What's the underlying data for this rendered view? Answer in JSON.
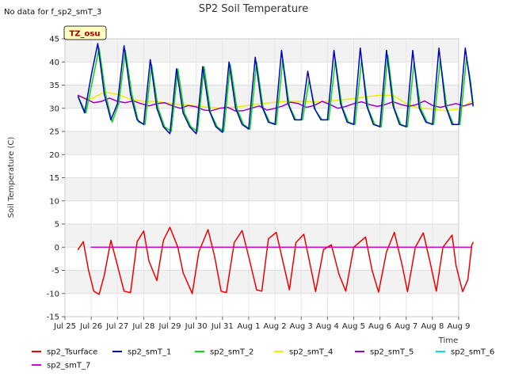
{
  "chart_data": {
    "type": "line",
    "title": "SP2 Soil Temperature",
    "ylabel": "Soil Temperature (C)",
    "xlabel": "Time",
    "ylim": [
      -15,
      45
    ],
    "yticks": [
      -15,
      -10,
      -5,
      0,
      5,
      10,
      15,
      20,
      25,
      30,
      35,
      40,
      45
    ],
    "xlim": [
      0,
      15
    ],
    "xtick_labels": [
      "Jul 25",
      "Jul 26",
      "Jul 27",
      "Jul 28",
      "Jul 29",
      "Jul 30",
      "Jul 31",
      "Aug 1",
      "Aug 2",
      "Aug 3",
      "Aug 4",
      "Aug 5",
      "Aug 6",
      "Aug 7",
      "Aug 8",
      "Aug 9"
    ],
    "grid": "horizontal bands",
    "legend_placement": "bottom",
    "series": [
      {
        "name": "sp2_Tsurface",
        "color": "#ee0000",
        "points": [
          [
            0.5,
            -0.5
          ],
          [
            0.7,
            1.2
          ],
          [
            0.9,
            -5
          ],
          [
            1.1,
            -9.5
          ],
          [
            1.3,
            -10.2
          ],
          [
            1.5,
            -6
          ],
          [
            1.75,
            1.5
          ],
          [
            2.0,
            -4
          ],
          [
            2.25,
            -9.5
          ],
          [
            2.5,
            -9.8
          ],
          [
            2.75,
            1.2
          ],
          [
            3.0,
            3.5
          ],
          [
            3.2,
            -3
          ],
          [
            3.5,
            -7.2
          ],
          [
            3.75,
            1.5
          ],
          [
            4.0,
            4.3
          ],
          [
            4.3,
            0
          ],
          [
            4.5,
            -5.5
          ],
          [
            4.85,
            -10
          ],
          [
            5.1,
            -1
          ],
          [
            5.45,
            3.8
          ],
          [
            5.7,
            -2
          ],
          [
            5.95,
            -9.5
          ],
          [
            6.15,
            -9.8
          ],
          [
            6.45,
            1
          ],
          [
            6.75,
            3.6
          ],
          [
            7.0,
            -2
          ],
          [
            7.3,
            -9.2
          ],
          [
            7.5,
            -9.5
          ],
          [
            7.75,
            1.8
          ],
          [
            8.05,
            3.2
          ],
          [
            8.3,
            -3
          ],
          [
            8.55,
            -9.2
          ],
          [
            8.8,
            1
          ],
          [
            9.1,
            2.8
          ],
          [
            9.35,
            -4
          ],
          [
            9.55,
            -9.6
          ],
          [
            9.85,
            -0.5
          ],
          [
            10.15,
            0.5
          ],
          [
            10.45,
            -6
          ],
          [
            10.7,
            -9.5
          ],
          [
            11.0,
            0
          ],
          [
            11.45,
            2.2
          ],
          [
            11.7,
            -5
          ],
          [
            11.95,
            -9.7
          ],
          [
            12.25,
            -1
          ],
          [
            12.55,
            3.2
          ],
          [
            12.85,
            -4
          ],
          [
            13.05,
            -9.6
          ],
          [
            13.35,
            0
          ],
          [
            13.65,
            3.1
          ],
          [
            13.9,
            -3
          ],
          [
            14.15,
            -9.5
          ],
          [
            14.4,
            0
          ],
          [
            14.75,
            2.6
          ],
          [
            14.9,
            -4
          ],
          [
            15.15,
            -9.6
          ],
          [
            15.35,
            -7
          ],
          [
            15.5,
            0.5
          ],
          [
            15.55,
            1
          ]
        ]
      },
      {
        "name": "sp2_smT_1",
        "color": "#0000cc",
        "points": [
          [
            0.5,
            32.5
          ],
          [
            0.75,
            29
          ],
          [
            1.0,
            37
          ],
          [
            1.25,
            44
          ],
          [
            1.5,
            33
          ],
          [
            1.75,
            27.5
          ],
          [
            2.0,
            31
          ],
          [
            2.25,
            43.5
          ],
          [
            2.5,
            33
          ],
          [
            2.75,
            27.5
          ],
          [
            3.0,
            26.5
          ],
          [
            3.25,
            40.5
          ],
          [
            3.5,
            30
          ],
          [
            3.75,
            26
          ],
          [
            4.0,
            24.5
          ],
          [
            4.25,
            38.5
          ],
          [
            4.5,
            29
          ],
          [
            4.75,
            26
          ],
          [
            5.0,
            24.5
          ],
          [
            5.25,
            39
          ],
          [
            5.5,
            29.5
          ],
          [
            5.75,
            26
          ],
          [
            6.0,
            24.8
          ],
          [
            6.25,
            40
          ],
          [
            6.5,
            30
          ],
          [
            6.75,
            26.5
          ],
          [
            7.0,
            25.5
          ],
          [
            7.25,
            41
          ],
          [
            7.5,
            30.5
          ],
          [
            7.75,
            27
          ],
          [
            8.0,
            26.5
          ],
          [
            8.25,
            42.5
          ],
          [
            8.5,
            31
          ],
          [
            8.75,
            27.5
          ],
          [
            9.0,
            27.5
          ],
          [
            9.25,
            38
          ],
          [
            9.5,
            30
          ],
          [
            9.75,
            27.5
          ],
          [
            10.0,
            27.5
          ],
          [
            10.25,
            42.5
          ],
          [
            10.5,
            31
          ],
          [
            10.75,
            27
          ],
          [
            11.0,
            26.5
          ],
          [
            11.25,
            43
          ],
          [
            11.5,
            30.5
          ],
          [
            11.75,
            26.5
          ],
          [
            12.0,
            26
          ],
          [
            12.25,
            42.5
          ],
          [
            12.5,
            30.5
          ],
          [
            12.75,
            26.5
          ],
          [
            13.0,
            26
          ],
          [
            13.25,
            42.5
          ],
          [
            13.5,
            30
          ],
          [
            13.75,
            27
          ],
          [
            14.0,
            26.5
          ],
          [
            14.25,
            43
          ],
          [
            14.5,
            30.5
          ],
          [
            14.75,
            26.5
          ],
          [
            15.0,
            26.5
          ],
          [
            15.25,
            43
          ],
          [
            15.4,
            37
          ],
          [
            15.55,
            30.5
          ]
        ]
      },
      {
        "name": "sp2_smT_2",
        "color": "#00dd00",
        "points": [
          [
            0.5,
            32.5
          ],
          [
            0.8,
            29
          ],
          [
            1.05,
            36
          ],
          [
            1.3,
            43
          ],
          [
            1.55,
            33
          ],
          [
            1.8,
            27
          ],
          [
            2.05,
            31
          ],
          [
            2.3,
            42.5
          ],
          [
            2.55,
            33
          ],
          [
            2.8,
            27
          ],
          [
            3.05,
            26.5
          ],
          [
            3.3,
            39.5
          ],
          [
            3.55,
            30
          ],
          [
            3.8,
            26
          ],
          [
            4.05,
            25
          ],
          [
            4.3,
            38.5
          ],
          [
            4.55,
            29
          ],
          [
            4.8,
            26
          ],
          [
            5.05,
            25
          ],
          [
            5.3,
            39
          ],
          [
            5.55,
            29
          ],
          [
            5.8,
            26
          ],
          [
            6.05,
            25
          ],
          [
            6.3,
            39.5
          ],
          [
            6.55,
            30
          ],
          [
            6.8,
            26.5
          ],
          [
            7.05,
            25.5
          ],
          [
            7.3,
            40
          ],
          [
            7.55,
            30
          ],
          [
            7.8,
            27
          ],
          [
            8.05,
            26.5
          ],
          [
            8.3,
            40.5
          ],
          [
            8.55,
            30.5
          ],
          [
            8.8,
            27.5
          ],
          [
            9.05,
            27.5
          ],
          [
            9.3,
            36
          ],
          [
            9.55,
            29.5
          ],
          [
            9.8,
            27.5
          ],
          [
            10.05,
            27.5
          ],
          [
            10.3,
            40.5
          ],
          [
            10.55,
            30.5
          ],
          [
            10.8,
            27
          ],
          [
            11.05,
            26.5
          ],
          [
            11.3,
            40.5
          ],
          [
            11.55,
            30
          ],
          [
            11.8,
            26.5
          ],
          [
            12.05,
            26
          ],
          [
            12.3,
            41.5
          ],
          [
            12.55,
            30
          ],
          [
            12.8,
            26.5
          ],
          [
            13.05,
            26
          ],
          [
            13.3,
            40
          ],
          [
            13.55,
            30
          ],
          [
            13.8,
            27
          ],
          [
            14.05,
            26.5
          ],
          [
            14.3,
            40.5
          ],
          [
            14.55,
            30
          ],
          [
            14.8,
            26.5
          ],
          [
            15.05,
            26.5
          ],
          [
            15.3,
            41
          ],
          [
            15.45,
            36
          ],
          [
            15.55,
            31
          ]
        ]
      },
      {
        "name": "sp2_smT_4",
        "color": "#eeee00",
        "points": [
          [
            0.5,
            32.5
          ],
          [
            1.0,
            32
          ],
          [
            1.5,
            33.5
          ],
          [
            2.0,
            33
          ],
          [
            2.5,
            32
          ],
          [
            3.0,
            31.5
          ],
          [
            3.5,
            31.5
          ],
          [
            4.0,
            31
          ],
          [
            4.5,
            30.8
          ],
          [
            5.0,
            30.5
          ],
          [
            5.5,
            30.2
          ],
          [
            6.0,
            30
          ],
          [
            6.5,
            30.3
          ],
          [
            7.0,
            30.6
          ],
          [
            7.5,
            31
          ],
          [
            8.0,
            31.3
          ],
          [
            8.5,
            31.5
          ],
          [
            9.0,
            31.5
          ],
          [
            9.5,
            31.4
          ],
          [
            10.0,
            31.5
          ],
          [
            10.5,
            31.8
          ],
          [
            11.0,
            32.1
          ],
          [
            11.5,
            32.5
          ],
          [
            12.0,
            32.8
          ],
          [
            12.5,
            32.8
          ],
          [
            13.0,
            31
          ],
          [
            13.5,
            30
          ],
          [
            14.0,
            29.8
          ],
          [
            14.5,
            29.5
          ],
          [
            15.0,
            29.8
          ],
          [
            15.5,
            31.5
          ],
          [
            15.55,
            31.8
          ]
        ]
      },
      {
        "name": "sp2_smT_5",
        "color": "#9900cc",
        "points": [
          [
            0.5,
            32.8
          ],
          [
            0.8,
            32
          ],
          [
            1.1,
            31.2
          ],
          [
            1.4,
            31.5
          ],
          [
            1.7,
            32.2
          ],
          [
            2.0,
            31.5
          ],
          [
            2.3,
            31.2
          ],
          [
            2.6,
            31.6
          ],
          [
            2.9,
            31
          ],
          [
            3.2,
            30.5
          ],
          [
            3.5,
            31
          ],
          [
            3.8,
            31.2
          ],
          [
            4.1,
            30.5
          ],
          [
            4.4,
            30
          ],
          [
            4.7,
            30.6
          ],
          [
            5.0,
            30.3
          ],
          [
            5.3,
            29.6
          ],
          [
            5.6,
            29.5
          ],
          [
            5.9,
            30
          ],
          [
            6.2,
            30.2
          ],
          [
            6.5,
            29.4
          ],
          [
            6.8,
            29.5
          ],
          [
            7.1,
            30
          ],
          [
            7.4,
            30.5
          ],
          [
            7.7,
            29.6
          ],
          [
            8.0,
            30
          ],
          [
            8.3,
            30.5
          ],
          [
            8.6,
            31.3
          ],
          [
            8.9,
            31
          ],
          [
            9.2,
            30.2
          ],
          [
            9.5,
            30.6
          ],
          [
            9.8,
            31.5
          ],
          [
            10.1,
            30.8
          ],
          [
            10.4,
            30
          ],
          [
            10.7,
            30.4
          ],
          [
            11.0,
            31
          ],
          [
            11.3,
            31.4
          ],
          [
            11.6,
            30.8
          ],
          [
            11.9,
            30.4
          ],
          [
            12.2,
            30.8
          ],
          [
            12.5,
            31.4
          ],
          [
            12.8,
            30.8
          ],
          [
            13.1,
            30.4
          ],
          [
            13.4,
            30.8
          ],
          [
            13.7,
            31.6
          ],
          [
            14.0,
            30.6
          ],
          [
            14.3,
            30.2
          ],
          [
            14.6,
            30.6
          ],
          [
            14.9,
            31
          ],
          [
            15.2,
            30.5
          ],
          [
            15.5,
            31
          ]
        ]
      },
      {
        "name": "sp2_smT_6",
        "color": "#00dddd",
        "points": []
      },
      {
        "name": "sp2_smT_7",
        "color": "#dd00dd",
        "points": [
          [
            1.0,
            0
          ],
          [
            2.5,
            0
          ],
          [
            4.0,
            0
          ],
          [
            6.0,
            0
          ],
          [
            8.0,
            0
          ],
          [
            10.0,
            0
          ],
          [
            12.0,
            0
          ],
          [
            14.0,
            0
          ],
          [
            15.5,
            0
          ]
        ]
      }
    ]
  },
  "annotations": {
    "no_data": "No data for f_sp2_smT_3",
    "badge": "TZ_osu"
  }
}
